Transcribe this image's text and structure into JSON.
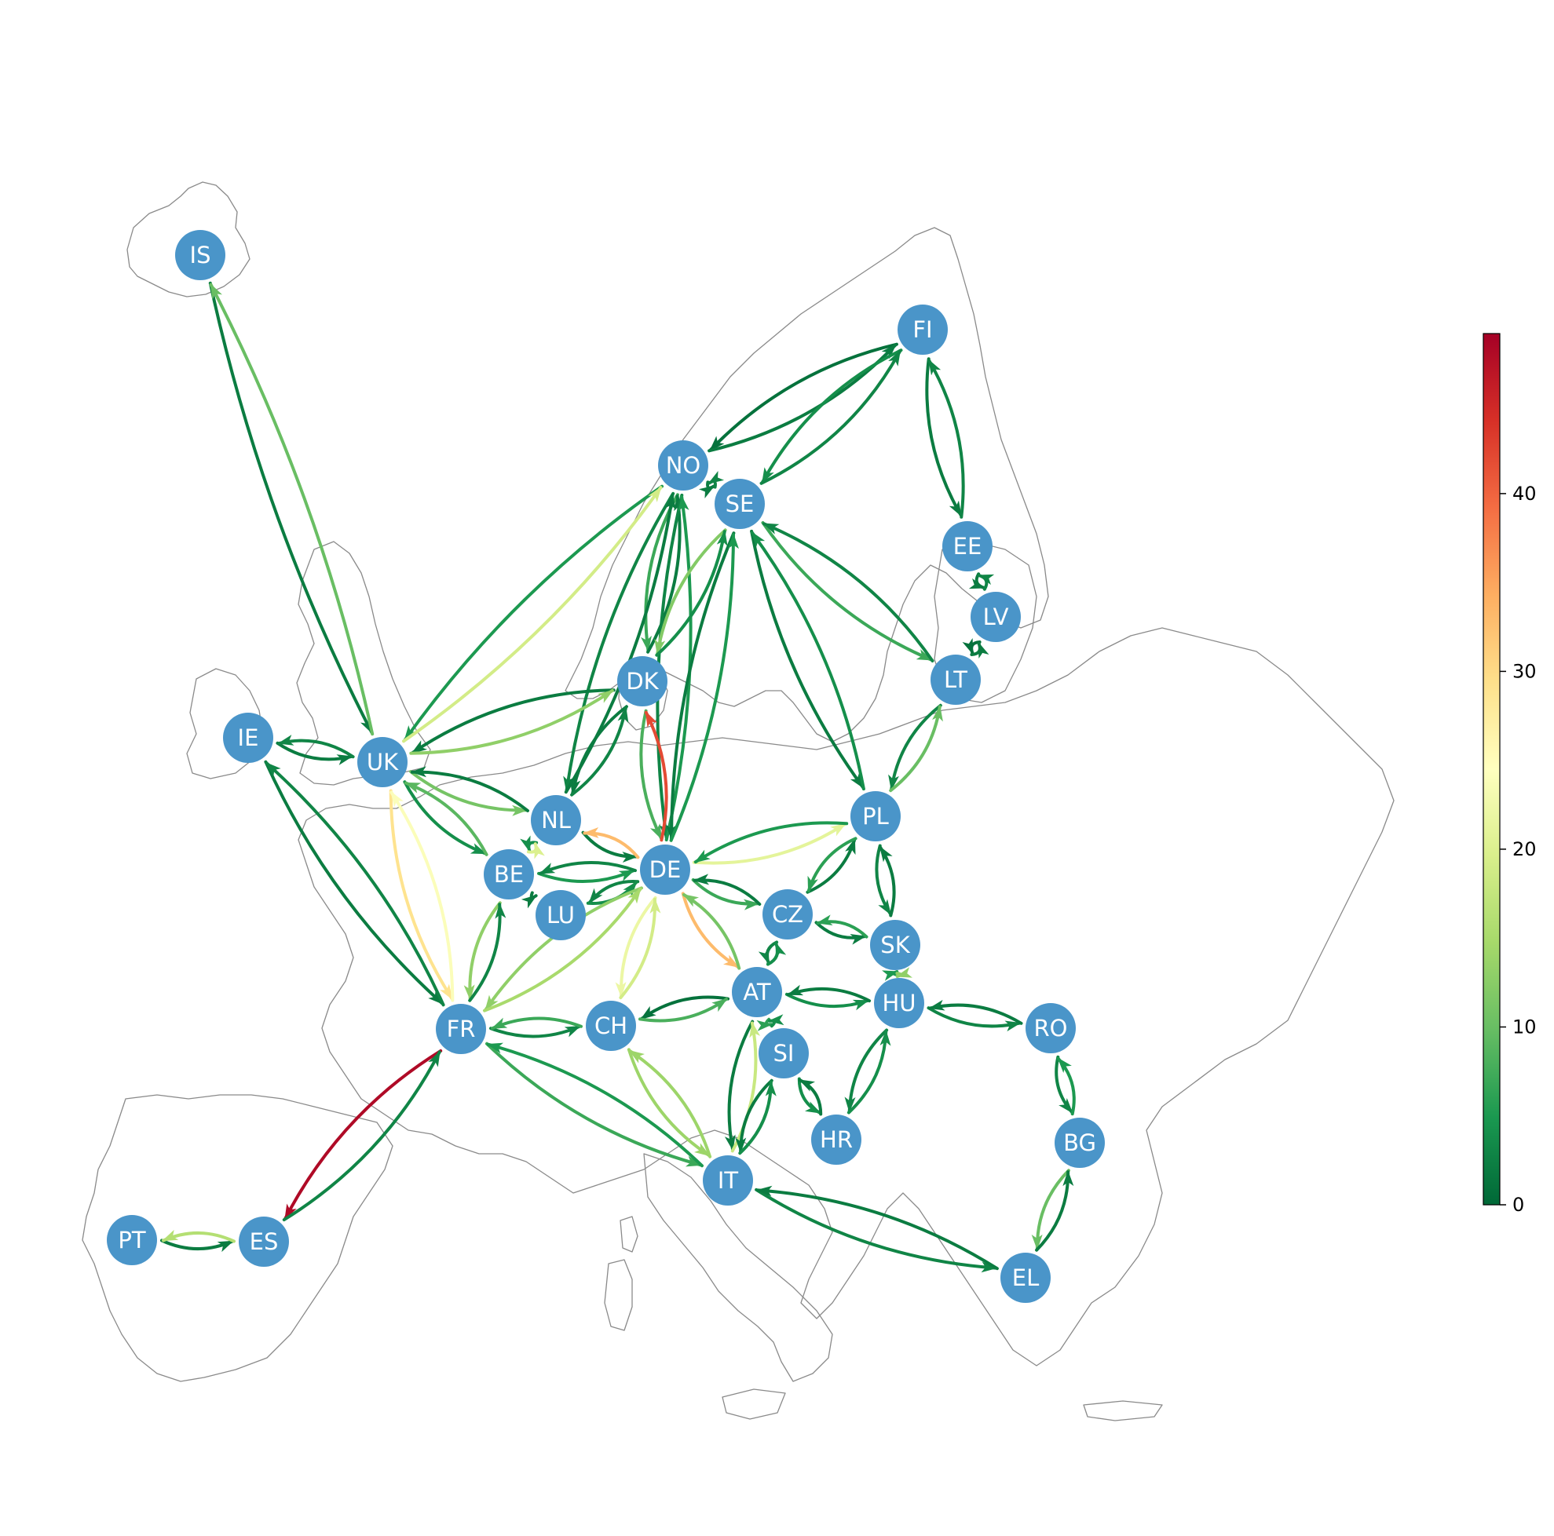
{
  "nodes": [
    {
      "id": "IS",
      "label": "IS"
    },
    {
      "id": "FI",
      "label": "FI"
    },
    {
      "id": "NO",
      "label": "NO"
    },
    {
      "id": "SE",
      "label": "SE"
    },
    {
      "id": "EE",
      "label": "EE"
    },
    {
      "id": "LV",
      "label": "LV"
    },
    {
      "id": "LT",
      "label": "LT"
    },
    {
      "id": "DK",
      "label": "DK"
    },
    {
      "id": "IE",
      "label": "IE"
    },
    {
      "id": "UK",
      "label": "UK"
    },
    {
      "id": "NL",
      "label": "NL"
    },
    {
      "id": "PL",
      "label": "PL"
    },
    {
      "id": "DE",
      "label": "DE"
    },
    {
      "id": "BE",
      "label": "BE"
    },
    {
      "id": "LU",
      "label": "LU"
    },
    {
      "id": "CZ",
      "label": "CZ"
    },
    {
      "id": "SK",
      "label": "SK"
    },
    {
      "id": "AT",
      "label": "AT"
    },
    {
      "id": "HU",
      "label": "HU"
    },
    {
      "id": "FR",
      "label": "FR"
    },
    {
      "id": "CH",
      "label": "CH"
    },
    {
      "id": "RO",
      "label": "RO"
    },
    {
      "id": "SI",
      "label": "SI"
    },
    {
      "id": "HR",
      "label": "HR"
    },
    {
      "id": "BG",
      "label": "BG"
    },
    {
      "id": "IT",
      "label": "IT"
    },
    {
      "id": "PT",
      "label": "PT"
    },
    {
      "id": "ES",
      "label": "ES"
    },
    {
      "id": "EL",
      "label": "EL"
    }
  ],
  "edges": [
    {
      "from": "IS",
      "to": "UK",
      "value": 2
    },
    {
      "from": "UK",
      "to": "IS",
      "value": 10
    },
    {
      "from": "FI",
      "to": "NO",
      "value": 1
    },
    {
      "from": "NO",
      "to": "FI",
      "value": 2
    },
    {
      "from": "FI",
      "to": "SE",
      "value": 4
    },
    {
      "from": "SE",
      "to": "FI",
      "value": 3
    },
    {
      "from": "FI",
      "to": "EE",
      "value": 2
    },
    {
      "from": "EE",
      "to": "FI",
      "value": 3
    },
    {
      "from": "EE",
      "to": "LV",
      "value": 2
    },
    {
      "from": "LV",
      "to": "EE",
      "value": 3
    },
    {
      "from": "LV",
      "to": "LT",
      "value": 1
    },
    {
      "from": "LT",
      "to": "LV",
      "value": 2
    },
    {
      "from": "SE",
      "to": "LT",
      "value": 7
    },
    {
      "from": "LT",
      "to": "SE",
      "value": 3
    },
    {
      "from": "NO",
      "to": "SE",
      "value": 2
    },
    {
      "from": "SE",
      "to": "NO",
      "value": 3
    },
    {
      "from": "NO",
      "to": "UK",
      "value": 5
    },
    {
      "from": "UK",
      "to": "NO",
      "value": 19
    },
    {
      "from": "NO",
      "to": "DK",
      "value": 7
    },
    {
      "from": "DK",
      "to": "NO",
      "value": 2
    },
    {
      "from": "NO",
      "to": "NL",
      "value": 3
    },
    {
      "from": "NL",
      "to": "NO",
      "value": 2
    },
    {
      "from": "NO",
      "to": "DE",
      "value": 3
    },
    {
      "from": "DE",
      "to": "NO",
      "value": 5
    },
    {
      "from": "SE",
      "to": "DK",
      "value": 12
    },
    {
      "from": "DK",
      "to": "SE",
      "value": 4
    },
    {
      "from": "SE",
      "to": "DE",
      "value": 2
    },
    {
      "from": "DE",
      "to": "SE",
      "value": 5
    },
    {
      "from": "SE",
      "to": "PL",
      "value": 2
    },
    {
      "from": "PL",
      "to": "SE",
      "value": 4
    },
    {
      "from": "LT",
      "to": "PL",
      "value": 3
    },
    {
      "from": "PL",
      "to": "LT",
      "value": 10
    },
    {
      "from": "DK",
      "to": "UK",
      "value": 2
    },
    {
      "from": "UK",
      "to": "DK",
      "value": 13
    },
    {
      "from": "DK",
      "to": "NL",
      "value": 2
    },
    {
      "from": "NL",
      "to": "DK",
      "value": 3
    },
    {
      "from": "DK",
      "to": "DE",
      "value": 8
    },
    {
      "from": "DE",
      "to": "DK",
      "value": 42
    },
    {
      "from": "IE",
      "to": "UK",
      "value": 2
    },
    {
      "from": "UK",
      "to": "IE",
      "value": 3
    },
    {
      "from": "IE",
      "to": "FR",
      "value": 2
    },
    {
      "from": "FR",
      "to": "IE",
      "value": 3
    },
    {
      "from": "UK",
      "to": "NL",
      "value": 11
    },
    {
      "from": "NL",
      "to": "UK",
      "value": 2
    },
    {
      "from": "UK",
      "to": "BE",
      "value": 4
    },
    {
      "from": "BE",
      "to": "UK",
      "value": 9
    },
    {
      "from": "UK",
      "to": "FR",
      "value": 29
    },
    {
      "from": "FR",
      "to": "UK",
      "value": 24
    },
    {
      "from": "NL",
      "to": "DE",
      "value": 2
    },
    {
      "from": "DE",
      "to": "NL",
      "value": 33
    },
    {
      "from": "NL",
      "to": "BE",
      "value": 4
    },
    {
      "from": "BE",
      "to": "NL",
      "value": 20
    },
    {
      "from": "BE",
      "to": "DE",
      "value": 5
    },
    {
      "from": "DE",
      "to": "BE",
      "value": 3
    },
    {
      "from": "DE",
      "to": "LU",
      "value": 3
    },
    {
      "from": "LU",
      "to": "DE",
      "value": 4
    },
    {
      "from": "BE",
      "to": "LU",
      "value": 2
    },
    {
      "from": "BE",
      "to": "FR",
      "value": 13
    },
    {
      "from": "FR",
      "to": "BE",
      "value": 3
    },
    {
      "from": "DE",
      "to": "PL",
      "value": 21
    },
    {
      "from": "PL",
      "to": "DE",
      "value": 5
    },
    {
      "from": "DE",
      "to": "CZ",
      "value": 7
    },
    {
      "from": "CZ",
      "to": "DE",
      "value": 2
    },
    {
      "from": "DE",
      "to": "AT",
      "value": 33
    },
    {
      "from": "AT",
      "to": "DE",
      "value": 11
    },
    {
      "from": "DE",
      "to": "FR",
      "value": 13
    },
    {
      "from": "FR",
      "to": "DE",
      "value": 15
    },
    {
      "from": "DE",
      "to": "CH",
      "value": 22
    },
    {
      "from": "CH",
      "to": "DE",
      "value": 19
    },
    {
      "from": "CZ",
      "to": "PL",
      "value": 2
    },
    {
      "from": "PL",
      "to": "CZ",
      "value": 6
    },
    {
      "from": "CZ",
      "to": "SK",
      "value": 2
    },
    {
      "from": "SK",
      "to": "CZ",
      "value": 6
    },
    {
      "from": "CZ",
      "to": "AT",
      "value": 3
    },
    {
      "from": "AT",
      "to": "CZ",
      "value": 4
    },
    {
      "from": "PL",
      "to": "SK",
      "value": 3
    },
    {
      "from": "SK",
      "to": "PL",
      "value": 2
    },
    {
      "from": "SK",
      "to": "HU",
      "value": 5
    },
    {
      "from": "HU",
      "to": "SK",
      "value": 13
    },
    {
      "from": "AT",
      "to": "HU",
      "value": 4
    },
    {
      "from": "HU",
      "to": "AT",
      "value": 2
    },
    {
      "from": "AT",
      "to": "CH",
      "value": 1
    },
    {
      "from": "CH",
      "to": "AT",
      "value": 8
    },
    {
      "from": "AT",
      "to": "SI",
      "value": 6
    },
    {
      "from": "SI",
      "to": "AT",
      "value": 4
    },
    {
      "from": "AT",
      "to": "IT",
      "value": 2
    },
    {
      "from": "IT",
      "to": "AT",
      "value": 18
    },
    {
      "from": "HU",
      "to": "RO",
      "value": 3
    },
    {
      "from": "RO",
      "to": "HU",
      "value": 2
    },
    {
      "from": "HU",
      "to": "HR",
      "value": 3
    },
    {
      "from": "HR",
      "to": "HU",
      "value": 4
    },
    {
      "from": "SI",
      "to": "HR",
      "value": 4
    },
    {
      "from": "HR",
      "to": "SI",
      "value": 2
    },
    {
      "from": "SI",
      "to": "IT",
      "value": 2
    },
    {
      "from": "IT",
      "to": "SI",
      "value": 4
    },
    {
      "from": "RO",
      "to": "BG",
      "value": 3
    },
    {
      "from": "BG",
      "to": "RO",
      "value": 5
    },
    {
      "from": "BG",
      "to": "EL",
      "value": 10
    },
    {
      "from": "EL",
      "to": "BG",
      "value": 2
    },
    {
      "from": "IT",
      "to": "EL",
      "value": 3
    },
    {
      "from": "EL",
      "to": "IT",
      "value": 2
    },
    {
      "from": "FR",
      "to": "CH",
      "value": 3
    },
    {
      "from": "CH",
      "to": "FR",
      "value": 7
    },
    {
      "from": "FR",
      "to": "IT",
      "value": 7
    },
    {
      "from": "IT",
      "to": "FR",
      "value": 5
    },
    {
      "from": "CH",
      "to": "IT",
      "value": 14
    },
    {
      "from": "IT",
      "to": "CH",
      "value": 14
    },
    {
      "from": "FR",
      "to": "ES",
      "value": 48
    },
    {
      "from": "ES",
      "to": "FR",
      "value": 3
    },
    {
      "from": "PT",
      "to": "ES",
      "value": 2
    },
    {
      "from": "ES",
      "to": "PT",
      "value": 16
    }
  ],
  "colorbar": {
    "min": 0,
    "max": 49,
    "ticks": [
      "0",
      "10",
      "20",
      "30",
      "40"
    ],
    "tick_values": [
      0,
      10,
      20,
      30,
      40
    ],
    "colormap": "RdYlGn_r",
    "stops": [
      "#006837",
      "#1a9850",
      "#66bd63",
      "#a6d96a",
      "#d9ef8b",
      "#ffffbf",
      "#fee08b",
      "#fdae61",
      "#f46d43",
      "#d73027",
      "#a50026"
    ]
  }
}
